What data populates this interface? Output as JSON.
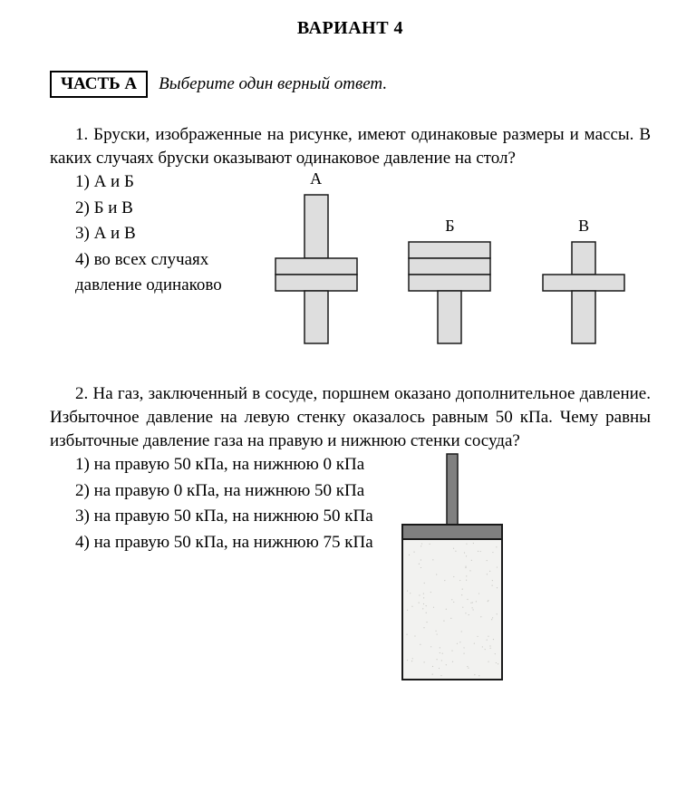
{
  "title": "ВАРИАНТ 4",
  "partA": {
    "label": "ЧАСТЬ А",
    "instruction": "Выберите один верный ответ."
  },
  "q1": {
    "text": "1. Бруски, изображенные на рисунке, имеют одинаковые размеры и массы. В каких случаях бруски оказывают одинаковое давление на стол?",
    "options": [
      "1) А и Б",
      "2) Б и В",
      "3) А и В",
      "4) во всех случаях",
      "давление одинаково"
    ],
    "labels": {
      "A": "А",
      "B": "Б",
      "V": "В"
    },
    "fig": {
      "fill": "#dedede",
      "stroke": "#1a1a1a",
      "strokeW": 1.5,
      "hbar_w": 90,
      "hbar_h": 18,
      "vbar_w": 26,
      "A": {
        "top_h": 70,
        "bars": 2,
        "bot_h": 58
      },
      "B": {
        "top_h": 0,
        "bars": 3,
        "bot_h": 58
      },
      "V": {
        "top_h": 36,
        "bars": 1,
        "bot_h": 58
      }
    }
  },
  "q2": {
    "text": "2. На газ, заключенный в сосуде, поршнем оказано дополнительное давление. Избыточное давление на левую стенку оказалось равным 50 кПа. Чему равны избыточные давление газа на правую и нижнюю стенки сосуда?",
    "options": [
      "1) на правую 50 кПа, на нижнюю 0 кПа",
      "2) на правую 0 кПа, на нижнюю 50 кПа",
      "3) на правую 50 кПа, на нижнюю 50 кПа",
      "4) на правую 50 кПа, на нижнюю 75 кПа"
    ],
    "fig": {
      "stroke": "#1a1a1a",
      "strokeW": 2,
      "rod_fill": "#808080",
      "rod_w": 12,
      "rod_h": 78,
      "piston_fill": "#808080",
      "piston_h": 16,
      "vessel_w": 110,
      "vessel_h": 155,
      "gas_fill": "#f2f2f0"
    }
  }
}
